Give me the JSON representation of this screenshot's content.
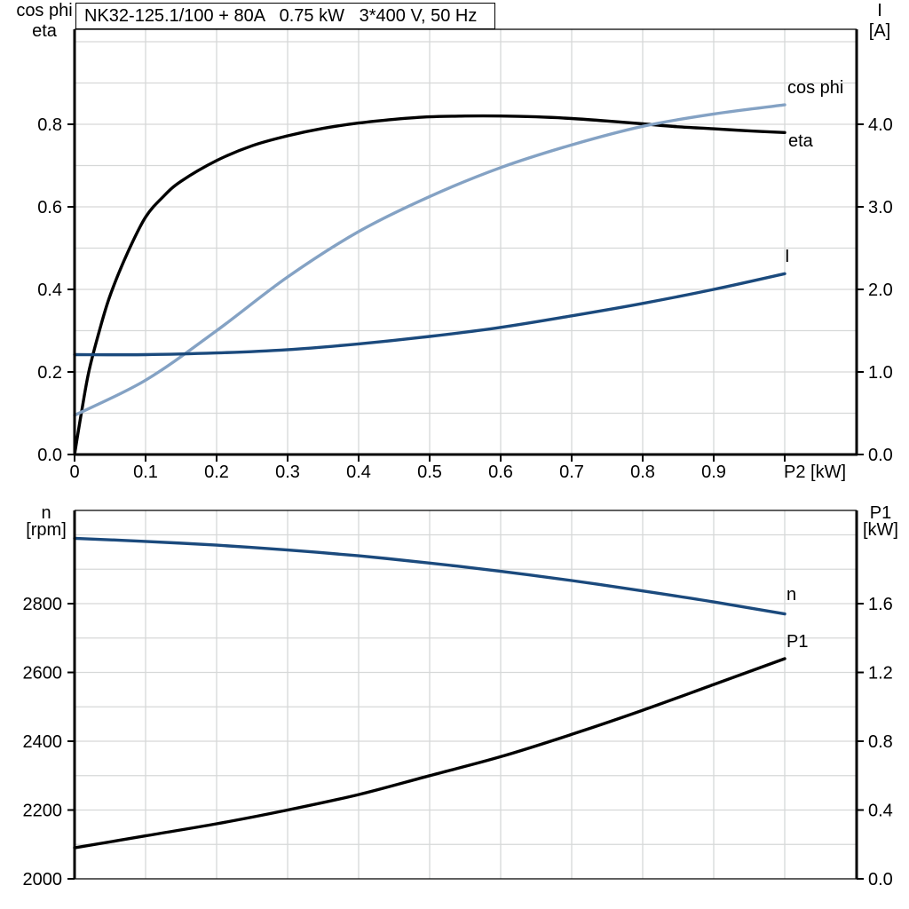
{
  "title_box": {
    "text": "NK32-125.1/100 + 80A   0.75 kW   3*400 V, 50 Hz"
  },
  "colors": {
    "black": "#000000",
    "dark_blue": "#1b4a7d",
    "light_blue": "#84a2c4",
    "grid": "#d6d8d8",
    "frame": "#000000",
    "background": "#ffffff"
  },
  "chart_data": [
    {
      "name": "motor-electrical",
      "type": "line",
      "title": "NK32-125.1/100 + 80A   0.75 kW   3*400 V, 50 Hz",
      "x_axis": {
        "label": "P2 [kW]",
        "min": 0,
        "max": 1.10125,
        "grid": [
          0.1,
          0.2,
          0.3,
          0.4,
          0.5,
          0.6,
          0.7,
          0.8,
          0.9,
          1.0
        ],
        "ticks": [
          {
            "v": 0,
            "t": "0"
          },
          {
            "v": 0.1,
            "t": "0.1"
          },
          {
            "v": 0.2,
            "t": "0.2"
          },
          {
            "v": 0.3,
            "t": "0.3"
          },
          {
            "v": 0.4,
            "t": "0.4"
          },
          {
            "v": 0.5,
            "t": "0.5"
          },
          {
            "v": 0.6,
            "t": "0.6"
          },
          {
            "v": 0.7,
            "t": "0.7"
          },
          {
            "v": 0.8,
            "t": "0.8"
          },
          {
            "v": 0.9,
            "t": "0.9"
          },
          {
            "v": 1.0,
            "t": "P2 [kW]",
            "anchor": "start"
          }
        ]
      },
      "left_axis": {
        "label_lines": [
          "cos phi",
          "eta"
        ],
        "min": 0,
        "max": 1.0301,
        "grid": [
          0.1,
          0.2,
          0.3,
          0.4,
          0.5,
          0.6,
          0.7,
          0.8,
          0.9,
          1.0
        ],
        "ticks": [
          {
            "v": 0,
            "t": "0.0"
          },
          {
            "v": 0.2,
            "t": "0.2"
          },
          {
            "v": 0.4,
            "t": "0.4"
          },
          {
            "v": 0.6,
            "t": "0.6"
          },
          {
            "v": 0.8,
            "t": "0.8"
          }
        ]
      },
      "right_axis": {
        "label_lines": [
          "I",
          "[A]"
        ],
        "min": 0,
        "max": 5.1505,
        "ticks": [
          {
            "v": 0,
            "t": "0.0"
          },
          {
            "v": 1,
            "t": "1.0"
          },
          {
            "v": 2,
            "t": "2.0"
          },
          {
            "v": 3,
            "t": "3.0"
          },
          {
            "v": 4,
            "t": "4.0"
          }
        ]
      },
      "series": [
        {
          "name": "eta",
          "label": "eta",
          "axis": "left",
          "color_key": "black",
          "points": [
            [
              0,
              0
            ],
            [
              0.01,
              0.105
            ],
            [
              0.02,
              0.2
            ],
            [
              0.035,
              0.3
            ],
            [
              0.05,
              0.385
            ],
            [
              0.075,
              0.49
            ],
            [
              0.1,
              0.575
            ],
            [
              0.125,
              0.625
            ],
            [
              0.15,
              0.662
            ],
            [
              0.2,
              0.712
            ],
            [
              0.25,
              0.748
            ],
            [
              0.3,
              0.772
            ],
            [
              0.35,
              0.79
            ],
            [
              0.4,
              0.803
            ],
            [
              0.45,
              0.812
            ],
            [
              0.5,
              0.818
            ],
            [
              0.55,
              0.82
            ],
            [
              0.6,
              0.82
            ],
            [
              0.65,
              0.818
            ],
            [
              0.7,
              0.814
            ],
            [
              0.75,
              0.808
            ],
            [
              0.8,
              0.801
            ],
            [
              0.85,
              0.794
            ],
            [
              0.9,
              0.789
            ],
            [
              0.95,
              0.784
            ],
            [
              1,
              0.78
            ]
          ]
        },
        {
          "name": "cos-phi",
          "label": "cos phi",
          "axis": "left",
          "color_key": "light_blue",
          "points": [
            [
              0,
              0.095
            ],
            [
              0.1,
              0.18
            ],
            [
              0.2,
              0.3
            ],
            [
              0.3,
              0.43
            ],
            [
              0.4,
              0.54
            ],
            [
              0.5,
              0.625
            ],
            [
              0.6,
              0.695
            ],
            [
              0.7,
              0.75
            ],
            [
              0.8,
              0.795
            ],
            [
              0.9,
              0.825
            ],
            [
              1,
              0.847
            ]
          ]
        },
        {
          "name": "I",
          "label": "I",
          "axis": "right",
          "color_key": "dark_blue",
          "points": [
            [
              0,
              1.21
            ],
            [
              0.1,
              1.21
            ],
            [
              0.2,
              1.23
            ],
            [
              0.3,
              1.27
            ],
            [
              0.4,
              1.34
            ],
            [
              0.5,
              1.43
            ],
            [
              0.6,
              1.54
            ],
            [
              0.7,
              1.68
            ],
            [
              0.8,
              1.83
            ],
            [
              0.9,
              2.0
            ],
            [
              1,
              2.19
            ]
          ]
        }
      ]
    },
    {
      "name": "speed-power",
      "type": "line",
      "title": "",
      "x_axis": {
        "label": "",
        "min": 0,
        "max": 1.10125,
        "grid": [
          0.1,
          0.2,
          0.3,
          0.4,
          0.5,
          0.6,
          0.7,
          0.8,
          0.9,
          1.0
        ],
        "ticks": []
      },
      "left_axis": {
        "label_lines": [
          "n",
          "[rpm]"
        ],
        "min": 2000,
        "max": 3071,
        "grid": [
          2100,
          2200,
          2300,
          2400,
          2500,
          2600,
          2700,
          2800,
          2900,
          3000
        ],
        "ticks": [
          {
            "v": 2000,
            "t": "2000"
          },
          {
            "v": 2200,
            "t": "2200"
          },
          {
            "v": 2400,
            "t": "2400"
          },
          {
            "v": 2600,
            "t": "2600"
          },
          {
            "v": 2800,
            "t": "2800"
          }
        ]
      },
      "right_axis": {
        "label_lines": [
          "P1",
          "[kW]"
        ],
        "min": 0,
        "max": 2.142,
        "ticks": [
          {
            "v": 0,
            "t": "0.0"
          },
          {
            "v": 0.4,
            "t": "0.4"
          },
          {
            "v": 0.8,
            "t": "0.8"
          },
          {
            "v": 1.2,
            "t": "1.2"
          },
          {
            "v": 1.6,
            "t": "1.6"
          }
        ]
      },
      "series": [
        {
          "name": "n",
          "label": "n",
          "axis": "left",
          "color_key": "dark_blue",
          "points": [
            [
              0,
              2990
            ],
            [
              0.1,
              2981
            ],
            [
              0.2,
              2970
            ],
            [
              0.3,
              2956
            ],
            [
              0.4,
              2939
            ],
            [
              0.5,
              2918
            ],
            [
              0.6,
              2894
            ],
            [
              0.7,
              2867
            ],
            [
              0.8,
              2837
            ],
            [
              0.9,
              2805
            ],
            [
              1,
              2770
            ]
          ]
        },
        {
          "name": "P1",
          "label": "P1",
          "axis": "right",
          "color_key": "black",
          "points": [
            [
              0,
              0.18
            ],
            [
              0.1,
              0.25
            ],
            [
              0.2,
              0.32
            ],
            [
              0.3,
              0.4
            ],
            [
              0.4,
              0.49
            ],
            [
              0.5,
              0.6
            ],
            [
              0.6,
              0.71
            ],
            [
              0.7,
              0.84
            ],
            [
              0.8,
              0.98
            ],
            [
              0.9,
              1.13
            ],
            [
              1,
              1.28
            ]
          ]
        }
      ]
    }
  ]
}
